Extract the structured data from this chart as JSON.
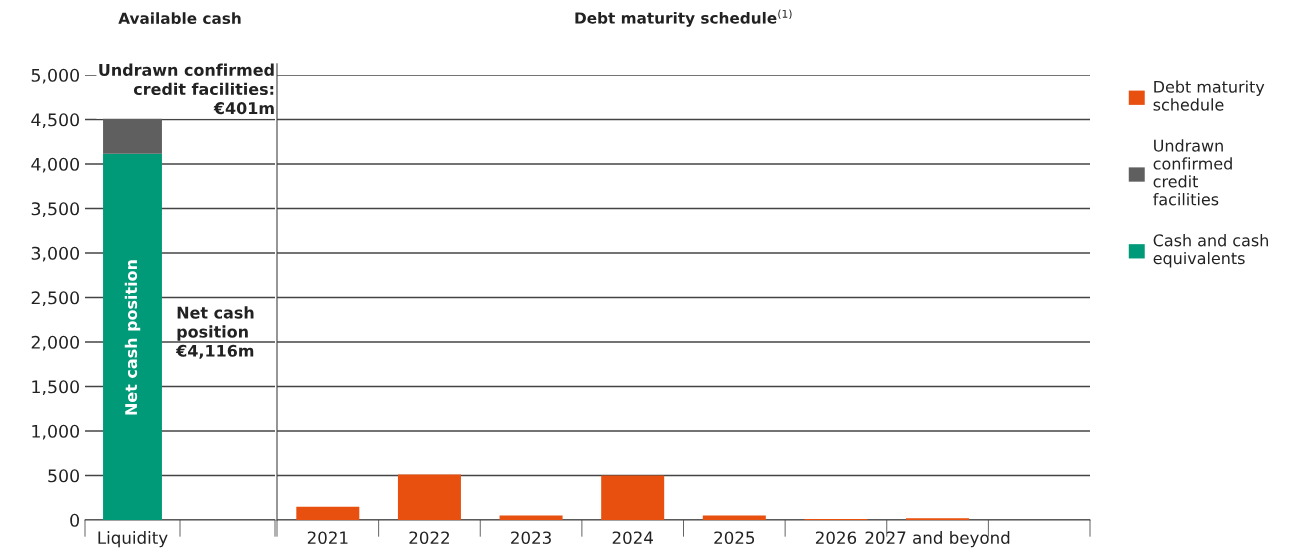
{
  "chart_data": [
    {
      "type": "bar",
      "title": "Available cash",
      "categories": [
        "Liquidity",
        null
      ],
      "stacked": true,
      "series": [
        {
          "name": "Cash and cash equivalents",
          "color": "#009a78",
          "values": [
            4116,
            null
          ]
        },
        {
          "name": "Undrawn confirmed credit facilities",
          "color": "#5f5f5f",
          "values": [
            401,
            null
          ]
        }
      ],
      "ylim": [
        0,
        5000
      ],
      "yticks": [
        {
          "value": 0,
          "label": "0"
        },
        {
          "value": 500,
          "label": "500"
        },
        {
          "value": 1000,
          "label": "1,000"
        },
        {
          "value": 1500,
          "label": "1,500"
        },
        {
          "value": 2000,
          "label": "2,000"
        },
        {
          "value": 2500,
          "label": "2,500"
        },
        {
          "value": 3000,
          "label": "3,000"
        },
        {
          "value": 3500,
          "label": "3,500"
        },
        {
          "value": 4000,
          "label": "4,000"
        },
        {
          "value": 4500,
          "label": "4,500"
        },
        {
          "value": 5000,
          "label": "5,000"
        }
      ],
      "grid": "y",
      "legend": "right",
      "annotations": [
        "Undrawn confirmed\ncredit facilities:\n€401m",
        "Net cash\nposition\n€4,116m",
        "Net cash position"
      ]
    },
    {
      "type": "bar",
      "title": "Debt maturity schedule$^{(1)}$",
      "categories": [
        "2021",
        "2022",
        "2023",
        "2024",
        "2025",
        "2026",
        "2027 and beyond",
        null
      ],
      "stacked": true,
      "series": [
        {
          "name": "Debt maturity schedule",
          "color": "#e8500f",
          "values": [
            150,
            510,
            50,
            500,
            50,
            10,
            20,
            null
          ]
        }
      ],
      "ylim": [
        0,
        5000
      ],
      "yticks": [
        0,
        500,
        1000,
        1500,
        2000,
        2500,
        3000,
        3500,
        4000,
        4500,
        5000
      ],
      "grid": "y",
      "legend": "right",
      "tick_labels": "x"
    }
  ]
}
